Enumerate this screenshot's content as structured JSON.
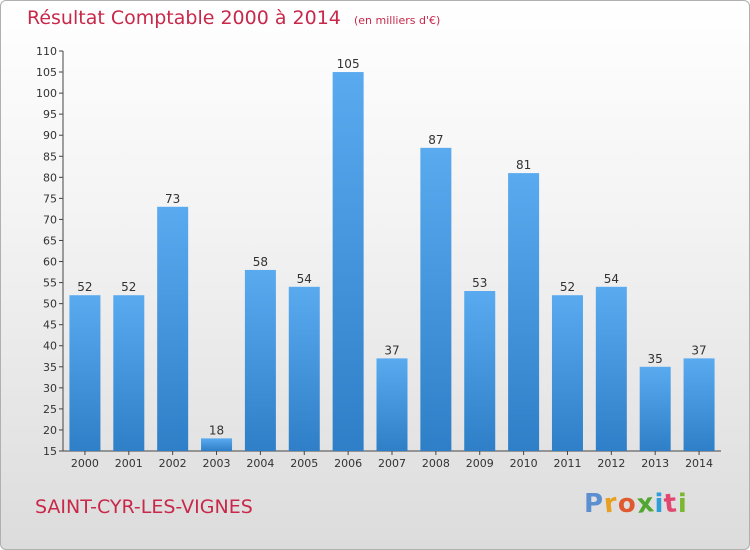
{
  "chart_data": {
    "type": "bar",
    "title": "Résultat Comptable 2000 à 2014",
    "subtitle": "(en milliers d'€)",
    "categories": [
      "2000",
      "2001",
      "2002",
      "2003",
      "2004",
      "2005",
      "2006",
      "2007",
      "2008",
      "2009",
      "2010",
      "2011",
      "2012",
      "2013",
      "2014"
    ],
    "values": [
      52,
      52,
      73,
      18,
      58,
      54,
      105,
      37,
      87,
      53,
      81,
      52,
      54,
      35,
      37
    ],
    "ylim": [
      15,
      110
    ],
    "yticks": [
      15,
      20,
      25,
      30,
      35,
      40,
      45,
      50,
      55,
      60,
      65,
      70,
      75,
      80,
      85,
      90,
      95,
      100,
      105,
      110
    ],
    "xlabel": "",
    "ylabel": "",
    "grid": false,
    "bar_color": "#5aaaf0",
    "bar_color_dark": "#2f7fc8"
  },
  "footer": {
    "town": "SAINT-CYR-LES-VIGNES",
    "logo_letters": [
      "P",
      "r",
      "o",
      "x",
      "i",
      "t",
      "i"
    ],
    "logo_colors": [
      "#5b8fd0",
      "#e8a020",
      "#e05a30",
      "#50a830",
      "#2f9ed8",
      "#e04870",
      "#7ab830"
    ]
  }
}
